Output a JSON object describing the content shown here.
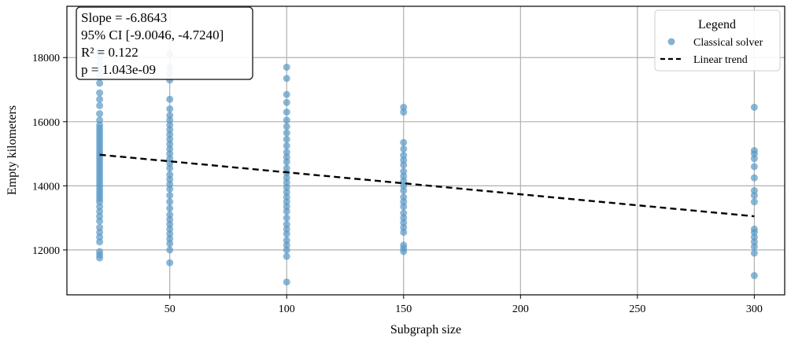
{
  "chart_data": {
    "type": "scatter",
    "title": "",
    "xlabel": "Subgraph size",
    "ylabel": "Empty kilometers",
    "xlim": [
      6,
      313
    ],
    "ylim": [
      10600,
      19600
    ],
    "xticks": [
      50,
      100,
      150,
      200,
      250,
      300
    ],
    "yticks": [
      12000,
      14000,
      16000,
      18000
    ],
    "grid": true,
    "legend": {
      "title": "Legend",
      "placement": "top-right",
      "entries": [
        "Classical solver",
        "Linear trend"
      ]
    },
    "annotations": {
      "slope": "Slope = -6.8643",
      "ci": "95% CI [-9.0046, -4.7240]",
      "r2": "R² = 0.122",
      "p": "p = 1.043e-09"
    },
    "colors": {
      "points": "#5a98c6",
      "trend": "#000000",
      "grid": "#b0b0b0"
    },
    "series": [
      {
        "name": "Classical solver",
        "kind": "scatter",
        "groups": [
          {
            "x": 20,
            "y": [
              11750,
              11850,
              11950,
              12250,
              12400,
              12550,
              12700,
              12900,
              13050,
              13200,
              13350,
              13500,
              13600,
              13700,
              13800,
              13900,
              14000,
              14100,
              14200,
              14300,
              14400,
              14500,
              14600,
              14700,
              14800,
              14900,
              15000,
              15100,
              15200,
              15300,
              15400,
              15500,
              15600,
              15700,
              15800,
              15900,
              16050,
              16250,
              16500,
              16700,
              16900,
              17200,
              17400,
              17600,
              17800,
              18000,
              18200
            ]
          },
          {
            "x": 50,
            "y": [
              11600,
              12000,
              12200,
              12350,
              12500,
              12650,
              12800,
              12950,
              13100,
              13300,
              13500,
              13700,
              13900,
              14050,
              14200,
              14350,
              14550,
              14700,
              14850,
              15000,
              15150,
              15300,
              15450,
              15600,
              15750,
              15900,
              16050,
              16200,
              16400,
              16700,
              17300,
              17500,
              17700,
              18100
            ]
          },
          {
            "x": 100,
            "y": [
              11000,
              11800,
              12000,
              12150,
              12300,
              12500,
              12650,
              12800,
              13000,
              13200,
              13350,
              13500,
              13650,
              13800,
              13950,
              14100,
              14250,
              14400,
              14550,
              14750,
              14900,
              15050,
              15250,
              15450,
              15650,
              15850,
              16050,
              16300,
              16600,
              16850,
              17350,
              17700
            ]
          },
          {
            "x": 150,
            "y": [
              11950,
              12050,
              12150,
              12550,
              12700,
              12850,
              13000,
              13150,
              13350,
              13500,
              13650,
              13850,
              14000,
              14150,
              14300,
              14450,
              14650,
              14800,
              14950,
              15150,
              15350,
              16300,
              16450
            ]
          },
          {
            "x": 300,
            "y": [
              11200,
              11900,
              12100,
              12250,
              12400,
              12550,
              12650,
              13500,
              13700,
              13850,
              14250,
              14600,
              14850,
              15000,
              15100,
              16450
            ]
          }
        ]
      },
      {
        "name": "Linear trend",
        "kind": "line",
        "x": [
          20,
          300
        ],
        "y": [
          14970,
          13050
        ]
      }
    ]
  }
}
